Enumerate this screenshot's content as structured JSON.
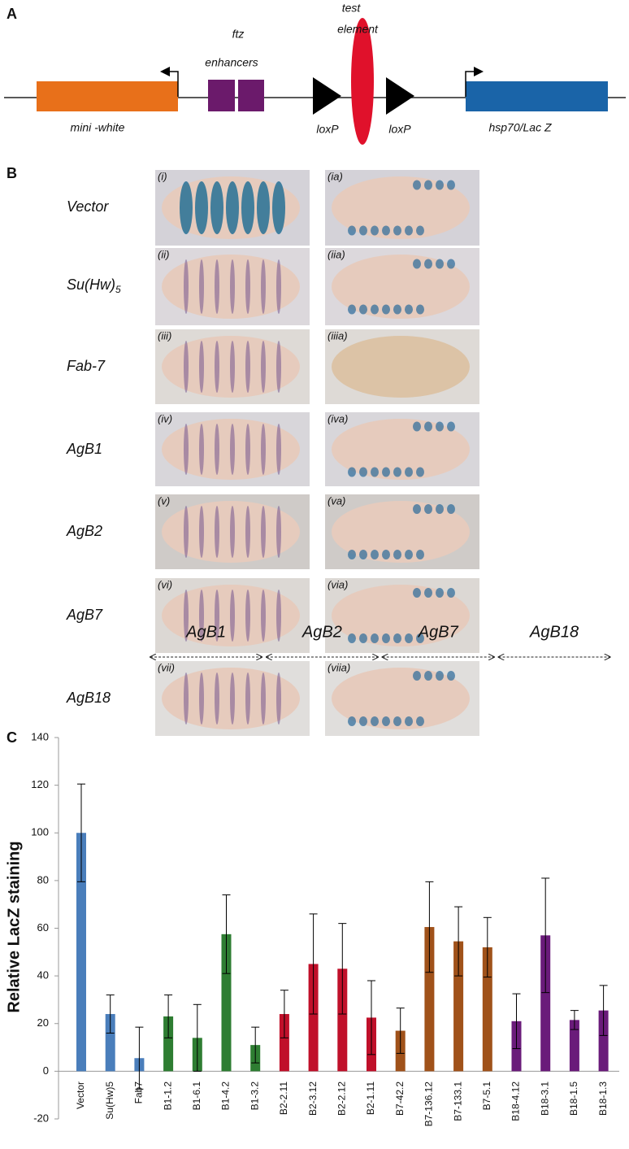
{
  "panel_a": {
    "label": "A",
    "ftz": "ftz",
    "enhancers": "enhancers",
    "test": "test",
    "element": "element",
    "mini_white": "mini -white",
    "loxp_left": "loxP",
    "loxp_right": "loxP",
    "reporter": "hsp70/Lac Z"
  },
  "panel_b": {
    "label": "B",
    "rows": [
      {
        "name": "Vector",
        "left": "(i)",
        "right": "(ia)"
      },
      {
        "name": "Su(Hw)",
        "sub": "5",
        "left": "(ii)",
        "right": "(iia)"
      },
      {
        "name": "Fab-7",
        "left": "(iii)",
        "right": "(iiia)"
      },
      {
        "name": "AgB1",
        "left": "(iv)",
        "right": "(iva)"
      },
      {
        "name": "AgB2",
        "left": "(v)",
        "right": "(va)"
      },
      {
        "name": "AgB7",
        "left": "(vi)",
        "right": "(via)"
      },
      {
        "name": "AgB18",
        "left": "(vii)",
        "right": "(viia)"
      }
    ]
  },
  "panel_c": {
    "label": "C"
  },
  "chart_data": {
    "type": "bar",
    "y_label": "Relative LacZ staining",
    "categories": [
      "Vector",
      "Su(Hw)5",
      "Fab7",
      "B1-1.2",
      "B1-6.1",
      "B1-4.2",
      "B1-3.2",
      "B2-2.11",
      "B2-3.12",
      "B2-2.12",
      "B2-1.11",
      "B7-42.2",
      "B7-136.12",
      "B7-133.1",
      "B7-5.1",
      "B18-4.12",
      "B18-3.1",
      "B18-1.5",
      "B18-1.3"
    ],
    "values": [
      100,
      24,
      5.5,
      23,
      14,
      57.5,
      11,
      24,
      45,
      43,
      22.5,
      17,
      60.5,
      54.5,
      52,
      21,
      57,
      21.5,
      25.5
    ],
    "errors": [
      20.5,
      8,
      13,
      9,
      14,
      16.5,
      7.5,
      10,
      21,
      19,
      15.5,
      9.5,
      19,
      14.5,
      12.5,
      11.5,
      24,
      4,
      10.5
    ],
    "colors": [
      "#4a7ebb",
      "#4a7ebb",
      "#4a7ebb",
      "#2e7d32",
      "#2e7d32",
      "#2e7d32",
      "#2e7d32",
      "#c0102a",
      "#c0102a",
      "#c0102a",
      "#c0102a",
      "#a0521a",
      "#a0521a",
      "#a0521a",
      "#a0521a",
      "#6a1b7a",
      "#6a1b7a",
      "#6a1b7a",
      "#6a1b7a"
    ],
    "groups": [
      "AgB1",
      "AgB2",
      "AgB7",
      "AgB18"
    ],
    "ylim": [
      -20,
      140
    ],
    "yticks": [
      -20,
      0,
      20,
      40,
      60,
      80,
      100,
      120,
      140
    ]
  }
}
